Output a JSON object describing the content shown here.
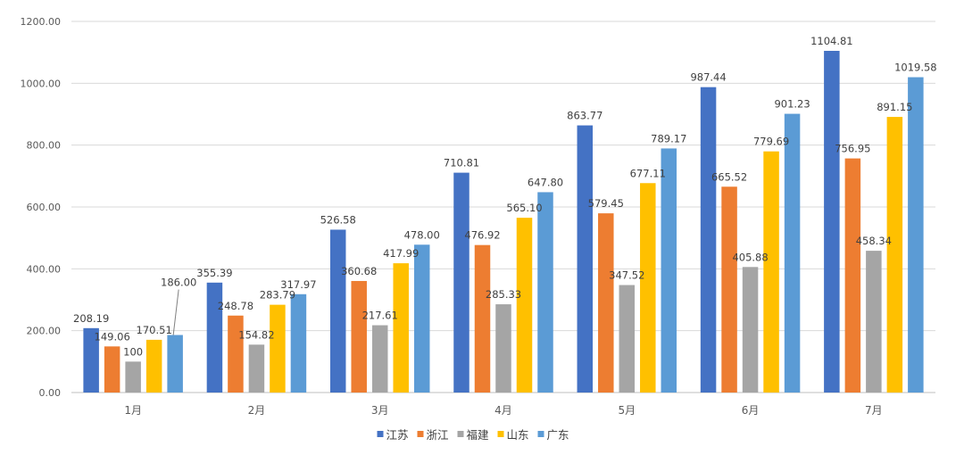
{
  "chart_data": {
    "type": "bar",
    "title": "",
    "xlabel": "",
    "ylabel": "",
    "categories": [
      "1月",
      "2月",
      "3月",
      "4月",
      "5月",
      "6月",
      "7月"
    ],
    "ylim": [
      0,
      1200
    ],
    "yticks": [
      "0.00",
      "200.00",
      "400.00",
      "600.00",
      "800.00",
      "1000.00",
      "1200.00"
    ],
    "grid": true,
    "legend_position": "bottom",
    "series": [
      {
        "name": "江苏",
        "color": "#4472C4",
        "values": [
          208.19,
          355.39,
          526.58,
          710.81,
          863.77,
          987.44,
          1104.81
        ],
        "labels": [
          "208.19",
          "355.39",
          "526.58",
          "710.81",
          "863.77",
          "987.44",
          "1104.81"
        ]
      },
      {
        "name": "浙江",
        "color": "#ED7D31",
        "values": [
          149.06,
          248.78,
          360.68,
          476.92,
          579.45,
          665.52,
          756.95
        ],
        "labels": [
          "149.06",
          "248.78",
          "360.68",
          "476.92",
          "579.45",
          "665.52",
          "756.95"
        ]
      },
      {
        "name": "福建",
        "color": "#A5A5A5",
        "values": [
          100,
          154.82,
          217.61,
          285.33,
          347.52,
          405.88,
          458.34
        ],
        "labels": [
          "100",
          "154.82",
          "217.61",
          "285.33",
          "347.52",
          "405.88",
          "458.34"
        ]
      },
      {
        "name": "山东",
        "color": "#FFC000",
        "values": [
          170.51,
          283.79,
          417.99,
          565.1,
          677.11,
          779.69,
          891.15
        ],
        "labels": [
          "170.51",
          "283.79",
          "417.99",
          "565.10",
          "677.11",
          "779.69",
          "891.15"
        ]
      },
      {
        "name": "广东",
        "color": "#5B9BD5",
        "values": [
          186,
          317.97,
          478,
          647.8,
          789.17,
          901.23,
          1019.58
        ],
        "labels": [
          "186.00",
          "317.97",
          "478.00",
          "647.80",
          "789.17",
          "901.23",
          "1019.58"
        ]
      }
    ]
  }
}
